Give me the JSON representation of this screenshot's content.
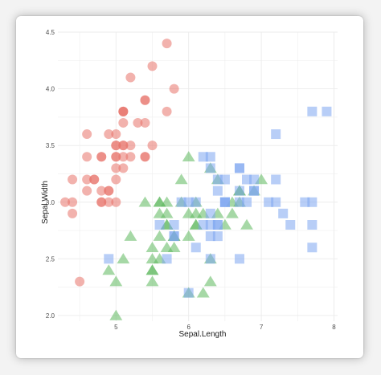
{
  "chart_data": {
    "type": "scatter",
    "title": "",
    "xlabel": "Sepal.Length",
    "ylabel": "Sepal.Width",
    "xlim": [
      4.2,
      8.05
    ],
    "ylim": [
      1.95,
      4.5
    ],
    "x_ticks": [
      "5",
      "6",
      "7",
      "8"
    ],
    "y_ticks": [
      "2.0",
      "2.5",
      "3.0",
      "3.5",
      "4.0",
      "4.5"
    ],
    "grid": true,
    "legend": "none",
    "series": [
      {
        "marker": "circle",
        "color": "#e8726a",
        "points": [
          [
            5.1,
            3.5
          ],
          [
            4.9,
            3.0
          ],
          [
            4.7,
            3.2
          ],
          [
            4.6,
            3.1
          ],
          [
            5.0,
            3.6
          ],
          [
            5.4,
            3.9
          ],
          [
            4.6,
            3.4
          ],
          [
            5.0,
            3.4
          ],
          [
            4.4,
            2.9
          ],
          [
            4.9,
            3.1
          ],
          [
            5.4,
            3.7
          ],
          [
            4.8,
            3.4
          ],
          [
            4.8,
            3.0
          ],
          [
            4.3,
            3.0
          ],
          [
            5.8,
            4.0
          ],
          [
            5.7,
            4.4
          ],
          [
            5.4,
            3.9
          ],
          [
            5.1,
            3.5
          ],
          [
            5.7,
            3.8
          ],
          [
            5.1,
            3.8
          ],
          [
            5.4,
            3.4
          ],
          [
            5.1,
            3.7
          ],
          [
            4.6,
            3.6
          ],
          [
            5.1,
            3.3
          ],
          [
            4.8,
            3.4
          ],
          [
            5.0,
            3.0
          ],
          [
            5.0,
            3.4
          ],
          [
            5.2,
            3.5
          ],
          [
            5.2,
            3.4
          ],
          [
            4.7,
            3.2
          ],
          [
            4.8,
            3.1
          ],
          [
            5.4,
            3.4
          ],
          [
            5.2,
            4.1
          ],
          [
            5.5,
            4.2
          ],
          [
            4.9,
            3.1
          ],
          [
            5.0,
            3.2
          ],
          [
            5.5,
            3.5
          ],
          [
            4.9,
            3.6
          ],
          [
            4.4,
            3.0
          ],
          [
            5.1,
            3.4
          ],
          [
            5.0,
            3.5
          ],
          [
            4.5,
            2.3
          ],
          [
            4.4,
            3.2
          ],
          [
            5.0,
            3.5
          ],
          [
            5.1,
            3.8
          ],
          [
            4.8,
            3.0
          ],
          [
            5.1,
            3.8
          ],
          [
            4.6,
            3.2
          ],
          [
            5.3,
            3.7
          ],
          [
            5.0,
            3.3
          ]
        ]
      },
      {
        "marker": "triangle",
        "color": "#5cb85c",
        "points": [
          [
            7.0,
            3.2
          ],
          [
            6.4,
            3.2
          ],
          [
            6.9,
            3.1
          ],
          [
            5.5,
            2.3
          ],
          [
            6.5,
            2.8
          ],
          [
            5.7,
            2.8
          ],
          [
            6.3,
            3.3
          ],
          [
            4.9,
            2.4
          ],
          [
            6.6,
            2.9
          ],
          [
            5.2,
            2.7
          ],
          [
            5.0,
            2.0
          ],
          [
            5.9,
            3.0
          ],
          [
            6.0,
            2.2
          ],
          [
            6.1,
            2.9
          ],
          [
            5.6,
            2.9
          ],
          [
            6.7,
            3.1
          ],
          [
            5.6,
            3.0
          ],
          [
            5.8,
            2.7
          ],
          [
            6.2,
            2.2
          ],
          [
            5.6,
            2.5
          ],
          [
            5.9,
            3.2
          ],
          [
            6.1,
            2.8
          ],
          [
            6.3,
            2.5
          ],
          [
            6.1,
            2.8
          ],
          [
            6.4,
            2.9
          ],
          [
            6.6,
            3.0
          ],
          [
            6.8,
            2.8
          ],
          [
            6.7,
            3.0
          ],
          [
            6.0,
            2.9
          ],
          [
            5.7,
            2.6
          ],
          [
            5.5,
            2.4
          ],
          [
            5.5,
            2.4
          ],
          [
            5.8,
            2.7
          ],
          [
            6.0,
            2.7
          ],
          [
            5.4,
            3.0
          ],
          [
            6.0,
            3.4
          ],
          [
            6.7,
            3.1
          ],
          [
            6.3,
            2.3
          ],
          [
            5.6,
            3.0
          ],
          [
            5.5,
            2.5
          ],
          [
            5.5,
            2.6
          ],
          [
            6.1,
            3.0
          ],
          [
            5.8,
            2.6
          ],
          [
            5.0,
            2.3
          ],
          [
            5.6,
            2.7
          ],
          [
            5.7,
            3.0
          ],
          [
            5.7,
            2.9
          ],
          [
            6.2,
            2.9
          ],
          [
            5.1,
            2.5
          ],
          [
            5.7,
            2.8
          ]
        ]
      },
      {
        "marker": "square",
        "color": "#7ea6f0",
        "points": [
          [
            6.3,
            3.3
          ],
          [
            5.8,
            2.7
          ],
          [
            7.1,
            3.0
          ],
          [
            6.3,
            2.9
          ],
          [
            6.5,
            3.0
          ],
          [
            7.6,
            3.0
          ],
          [
            4.9,
            2.5
          ],
          [
            7.3,
            2.9
          ],
          [
            6.7,
            2.5
          ],
          [
            7.2,
            3.6
          ],
          [
            6.5,
            3.2
          ],
          [
            6.4,
            2.7
          ],
          [
            6.8,
            3.0
          ],
          [
            5.7,
            2.5
          ],
          [
            5.8,
            2.8
          ],
          [
            6.4,
            3.2
          ],
          [
            6.5,
            3.0
          ],
          [
            7.7,
            3.8
          ],
          [
            7.7,
            2.6
          ],
          [
            6.0,
            2.2
          ],
          [
            6.9,
            3.2
          ],
          [
            5.6,
            2.8
          ],
          [
            7.7,
            2.8
          ],
          [
            6.3,
            2.7
          ],
          [
            6.7,
            3.3
          ],
          [
            7.2,
            3.2
          ],
          [
            6.2,
            2.8
          ],
          [
            6.1,
            3.0
          ],
          [
            6.4,
            2.8
          ],
          [
            7.2,
            3.0
          ],
          [
            7.4,
            2.8
          ],
          [
            7.9,
            3.8
          ],
          [
            6.4,
            2.8
          ],
          [
            6.3,
            2.8
          ],
          [
            6.1,
            2.6
          ],
          [
            7.7,
            3.0
          ],
          [
            6.3,
            3.4
          ],
          [
            6.4,
            3.1
          ],
          [
            6.0,
            3.0
          ],
          [
            6.9,
            3.1
          ],
          [
            6.7,
            3.1
          ],
          [
            6.9,
            3.1
          ],
          [
            5.8,
            2.7
          ],
          [
            6.8,
            3.2
          ],
          [
            6.7,
            3.3
          ],
          [
            6.7,
            3.0
          ],
          [
            6.3,
            2.5
          ],
          [
            6.5,
            3.0
          ],
          [
            6.2,
            3.4
          ],
          [
            5.9,
            3.0
          ]
        ]
      }
    ]
  }
}
